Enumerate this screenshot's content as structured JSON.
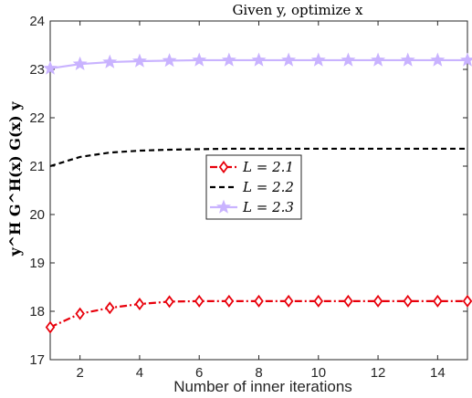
{
  "chart_data": {
    "type": "line",
    "title": "Given y, optimize x",
    "xlabel": "Number of inner iterations",
    "ylabel": "y^H G^H(x) G(x) y",
    "xlim": [
      1,
      15
    ],
    "ylim": [
      17,
      24
    ],
    "xticks": [
      2,
      4,
      6,
      8,
      10,
      12,
      14
    ],
    "yticks": [
      17,
      18,
      19,
      20,
      21,
      22,
      23,
      24
    ],
    "x": [
      1,
      2,
      3,
      4,
      5,
      6,
      7,
      8,
      9,
      10,
      11,
      12,
      13,
      14,
      15
    ],
    "legend_position": "center-left",
    "grid": false,
    "series": [
      {
        "name": "L = 2.1",
        "color": "#e8000b",
        "line": "dash-dot",
        "marker": "diamond",
        "values": [
          17.67,
          17.95,
          18.07,
          18.15,
          18.2,
          18.21,
          18.21,
          18.21,
          18.21,
          18.21,
          18.21,
          18.21,
          18.21,
          18.21,
          18.21
        ]
      },
      {
        "name": "L = 2.2",
        "color": "#000000",
        "line": "dashed",
        "marker": "none",
        "values": [
          21.0,
          21.19,
          21.28,
          21.32,
          21.34,
          21.35,
          21.36,
          21.36,
          21.36,
          21.36,
          21.36,
          21.36,
          21.36,
          21.36,
          21.36
        ]
      },
      {
        "name": "L = 2.3",
        "color": "#c9b3ff",
        "line": "solid",
        "marker": "star",
        "values": [
          23.02,
          23.11,
          23.15,
          23.17,
          23.18,
          23.19,
          23.19,
          23.19,
          23.19,
          23.19,
          23.19,
          23.19,
          23.19,
          23.19,
          23.19
        ]
      }
    ]
  }
}
